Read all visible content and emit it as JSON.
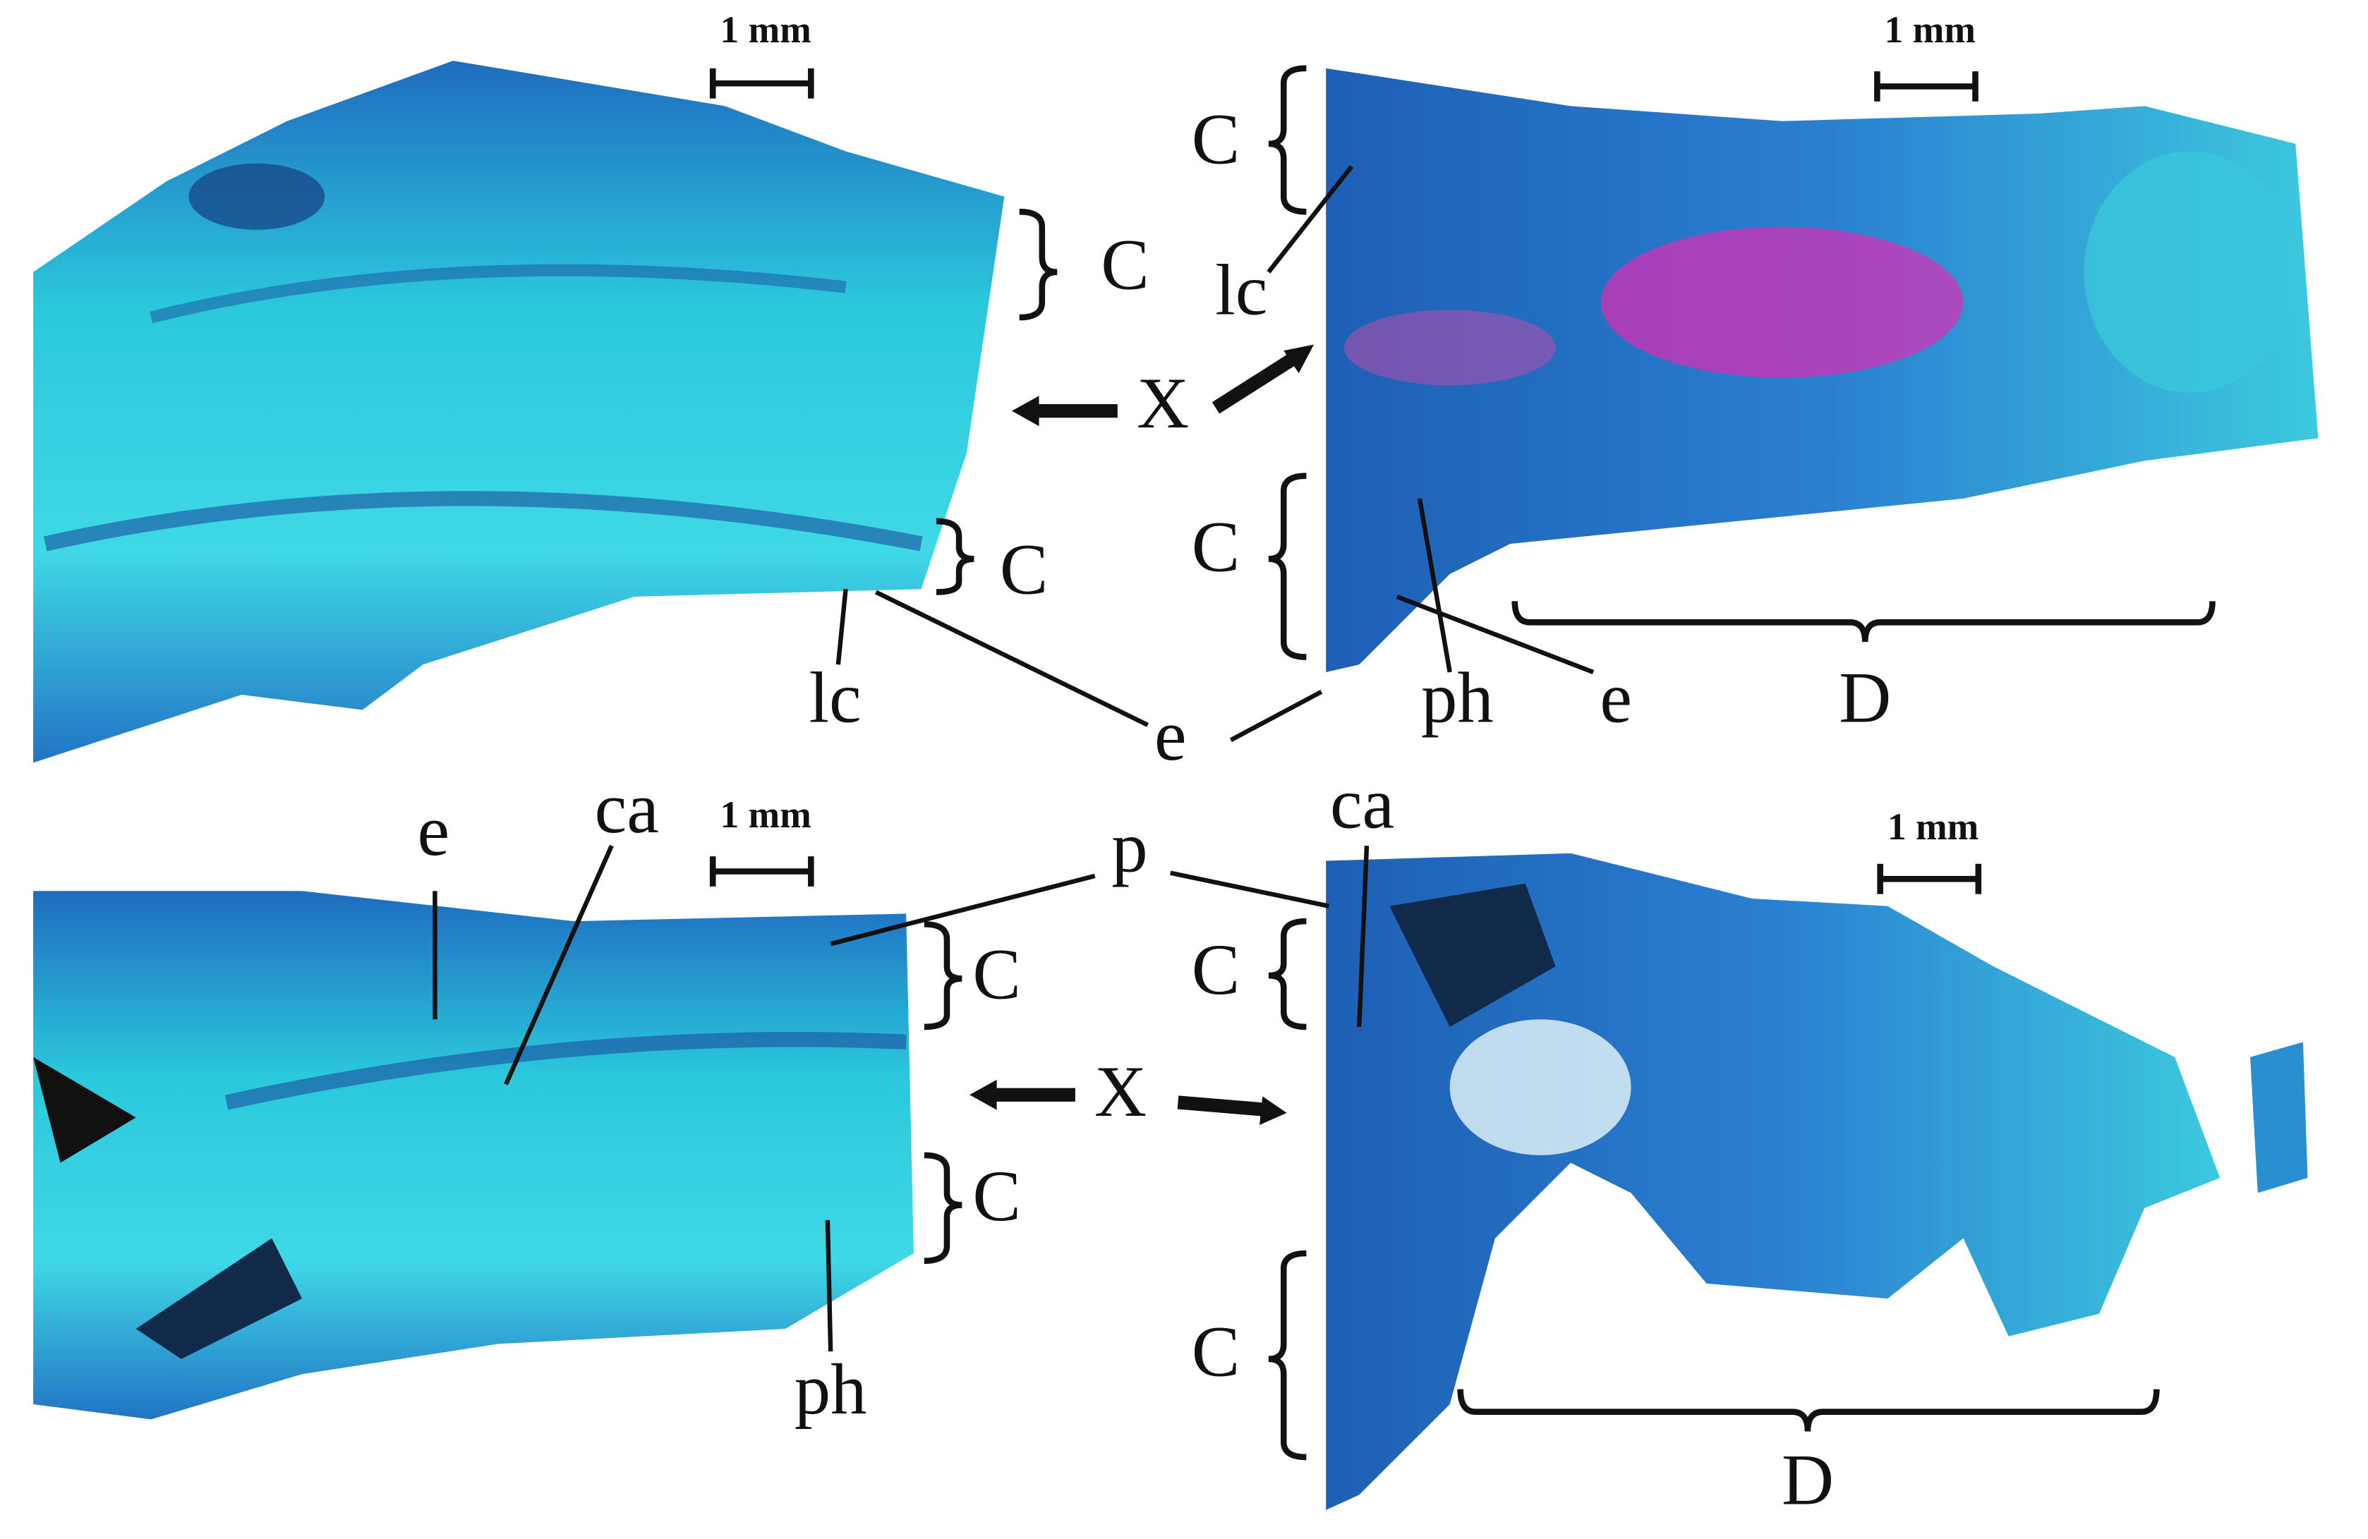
{
  "panels": [
    {
      "scale_bar": "1 mm",
      "labels": [
        "C",
        "C",
        "lc"
      ]
    },
    {
      "scale_bar": "1 mm",
      "labels": [
        "C",
        "lc",
        "C",
        "ph",
        "e",
        "D"
      ]
    },
    {
      "scale_bar": "1 mm",
      "labels": [
        "e",
        "ca",
        "C",
        "C",
        "ph"
      ]
    },
    {
      "scale_bar": "1 mm",
      "labels": [
        "ca",
        "C",
        "C",
        "D"
      ]
    }
  ],
  "shared_labels": [
    "X",
    "e",
    "X",
    "p"
  ]
}
